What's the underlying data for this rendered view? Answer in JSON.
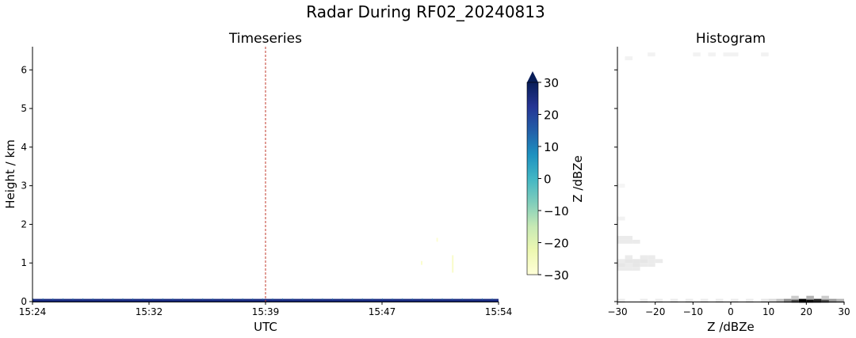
{
  "figure": {
    "suptitle": "Radar During RF02_20240813"
  },
  "chart_data": [
    {
      "type": "heatmap",
      "title": "Timeseries",
      "xlabel": "UTC",
      "ylabel": "Height / km",
      "x_ticks": [
        "15:24",
        "15:32",
        "15:39",
        "15:47",
        "15:54"
      ],
      "y_ticks": [
        0,
        1,
        2,
        3,
        4,
        5,
        6
      ],
      "ylim": [
        0,
        6.6
      ],
      "grid": false,
      "marker_line": {
        "time": "15:39",
        "style": "dashed",
        "color": "#c0392b"
      },
      "colorbar": {
        "label": "Z /dBZe",
        "ticks": [
          -30,
          -20,
          -10,
          0,
          10,
          20,
          30
        ],
        "range": [
          -30,
          30
        ],
        "colormap": "YlGnBu",
        "extend": "max",
        "colors": [
          "#ffffd9",
          "#edf8b1",
          "#c7e9b4",
          "#7fcdbb",
          "#41b6c4",
          "#1d91c0",
          "#225ea8",
          "#253494",
          "#081d58"
        ]
      },
      "features": [
        {
          "name": "surface echo",
          "height_km": [
            0.0,
            0.07
          ],
          "z_dbze": 25
        },
        {
          "name": "weak echo",
          "time": "15:49",
          "height_km": [
            0.95,
            1.05
          ],
          "z_dbze": -28
        },
        {
          "name": "weak echo",
          "time": "15:51",
          "height_km": [
            0.75,
            1.2
          ],
          "z_dbze": -27
        },
        {
          "name": "weak echo",
          "time": "15:50",
          "height_km": [
            1.55,
            1.65
          ],
          "z_dbze": -29
        }
      ]
    },
    {
      "type": "heatmap",
      "title": "Histogram",
      "xlabel": "Z /dBZe",
      "x_ticks": [
        -30,
        -20,
        -10,
        0,
        10,
        20,
        30
      ],
      "xlim": [
        -30,
        30
      ],
      "ylim": [
        0,
        6.6
      ],
      "colormap": "Greys",
      "cells": [
        {
          "z": 19,
          "h": 0.02,
          "v": 1.0
        },
        {
          "z": 21,
          "h": 0.02,
          "v": 0.95
        },
        {
          "z": 23,
          "h": 0.02,
          "v": 0.85
        },
        {
          "z": 17,
          "h": 0.02,
          "v": 0.7
        },
        {
          "z": 25,
          "h": 0.02,
          "v": 0.7
        },
        {
          "z": 15,
          "h": 0.02,
          "v": 0.45
        },
        {
          "z": 27,
          "h": 0.02,
          "v": 0.4
        },
        {
          "z": 13,
          "h": 0.02,
          "v": 0.25
        },
        {
          "z": 29,
          "h": 0.02,
          "v": 0.3
        },
        {
          "z": 11,
          "h": 0.02,
          "v": 0.15
        },
        {
          "z": 9,
          "h": 0.02,
          "v": 0.1
        },
        {
          "z": 5,
          "h": 0.02,
          "v": 0.08
        },
        {
          "z": 1,
          "h": 0.02,
          "v": 0.08
        },
        {
          "z": -3,
          "h": 0.02,
          "v": 0.08
        },
        {
          "z": -7,
          "h": 0.02,
          "v": 0.08
        },
        {
          "z": -11,
          "h": 0.02,
          "v": 0.08
        },
        {
          "z": -15,
          "h": 0.02,
          "v": 0.08
        },
        {
          "z": -19,
          "h": 0.02,
          "v": 0.08
        },
        {
          "z": -23,
          "h": 0.02,
          "v": 0.08
        },
        {
          "z": -29,
          "h": 0.02,
          "v": 0.08
        },
        {
          "z": 17,
          "h": 0.1,
          "v": 0.2
        },
        {
          "z": 21,
          "h": 0.1,
          "v": 0.3
        },
        {
          "z": 25,
          "h": 0.1,
          "v": 0.2
        },
        {
          "z": -29,
          "h": 0.85,
          "v": 0.08
        },
        {
          "z": -27,
          "h": 0.85,
          "v": 0.08
        },
        {
          "z": -25,
          "h": 0.85,
          "v": 0.08
        },
        {
          "z": -29,
          "h": 0.95,
          "v": 0.1
        },
        {
          "z": -27,
          "h": 0.95,
          "v": 0.08
        },
        {
          "z": -25,
          "h": 0.95,
          "v": 0.1
        },
        {
          "z": -23,
          "h": 0.95,
          "v": 0.08
        },
        {
          "z": -21,
          "h": 0.95,
          "v": 0.08
        },
        {
          "z": -29,
          "h": 1.05,
          "v": 0.08
        },
        {
          "z": -27,
          "h": 1.05,
          "v": 0.1
        },
        {
          "z": -25,
          "h": 1.05,
          "v": 0.1
        },
        {
          "z": -23,
          "h": 1.05,
          "v": 0.1
        },
        {
          "z": -21,
          "h": 1.05,
          "v": 0.08
        },
        {
          "z": -19,
          "h": 1.05,
          "v": 0.08
        },
        {
          "z": -27,
          "h": 1.15,
          "v": 0.08
        },
        {
          "z": -23,
          "h": 1.15,
          "v": 0.08
        },
        {
          "z": -21,
          "h": 1.15,
          "v": 0.08
        },
        {
          "z": -29,
          "h": 1.55,
          "v": 0.08
        },
        {
          "z": -27,
          "h": 1.55,
          "v": 0.08
        },
        {
          "z": -25,
          "h": 1.55,
          "v": 0.08
        },
        {
          "z": -29,
          "h": 1.65,
          "v": 0.08
        },
        {
          "z": -27,
          "h": 1.65,
          "v": 0.08
        },
        {
          "z": -29,
          "h": 2.15,
          "v": 0.05
        },
        {
          "z": -29,
          "h": 3.0,
          "v": 0.04
        },
        {
          "z": -27,
          "h": 6.3,
          "v": 0.05
        },
        {
          "z": -21,
          "h": 6.4,
          "v": 0.05
        },
        {
          "z": -9,
          "h": 6.4,
          "v": 0.05
        },
        {
          "z": -5,
          "h": 6.4,
          "v": 0.05
        },
        {
          "z": -1,
          "h": 6.4,
          "v": 0.05
        },
        {
          "z": 1,
          "h": 6.4,
          "v": 0.05
        },
        {
          "z": 9,
          "h": 6.4,
          "v": 0.05
        }
      ]
    }
  ]
}
